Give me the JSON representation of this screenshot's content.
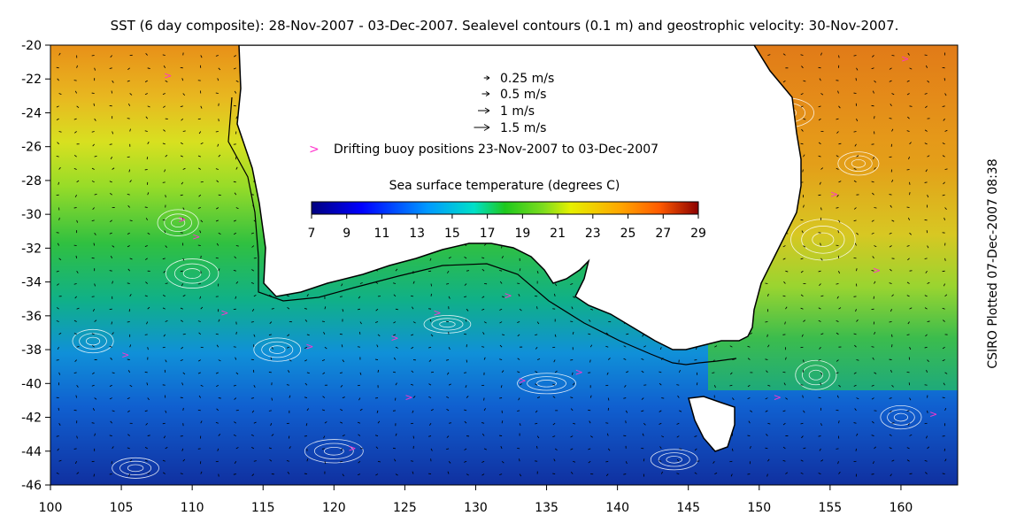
{
  "title": "SST (6 day composite): 28-Nov-2007 - 03-Dec-2007. Sealevel contours (0.1 m) and geostrophic velocity: 30-Nov-2007.",
  "side_label": "CSIRO Plotted 07-Dec-2007 08:38",
  "map": {
    "lon_range": [
      100,
      164
    ],
    "lat_range": [
      -46,
      -20
    ],
    "lon_ticks": [
      100,
      105,
      110,
      115,
      120,
      125,
      130,
      135,
      140,
      145,
      150,
      155,
      160
    ],
    "lat_ticks": [
      -20,
      -22,
      -24,
      -26,
      -28,
      -30,
      -32,
      -34,
      -36,
      -38,
      -40,
      -42,
      -44,
      -46
    ],
    "land_color": "#ffffff",
    "coast_color": "#000000",
    "contour_color": "#ffffff",
    "buoy_color": "#ff33cc"
  },
  "legend": {
    "vectors": [
      {
        "label": "0.25 m/s",
        "size": 0.25
      },
      {
        "label": "0.5 m/s",
        "size": 0.5
      },
      {
        "label": "1 m/s",
        "size": 1
      },
      {
        "label": "1.5 m/s",
        "size": 1.5
      }
    ],
    "buoy_marker": ">",
    "buoy_label": "Drifting buoy positions 23-Nov-2007 to 03-Dec-2007"
  },
  "colorbar": {
    "title": "Sea surface temperature (degrees C)",
    "min": 7,
    "max": 29,
    "ticks": [
      7,
      9,
      11,
      13,
      15,
      17,
      19,
      21,
      23,
      25,
      27,
      29
    ]
  }
}
